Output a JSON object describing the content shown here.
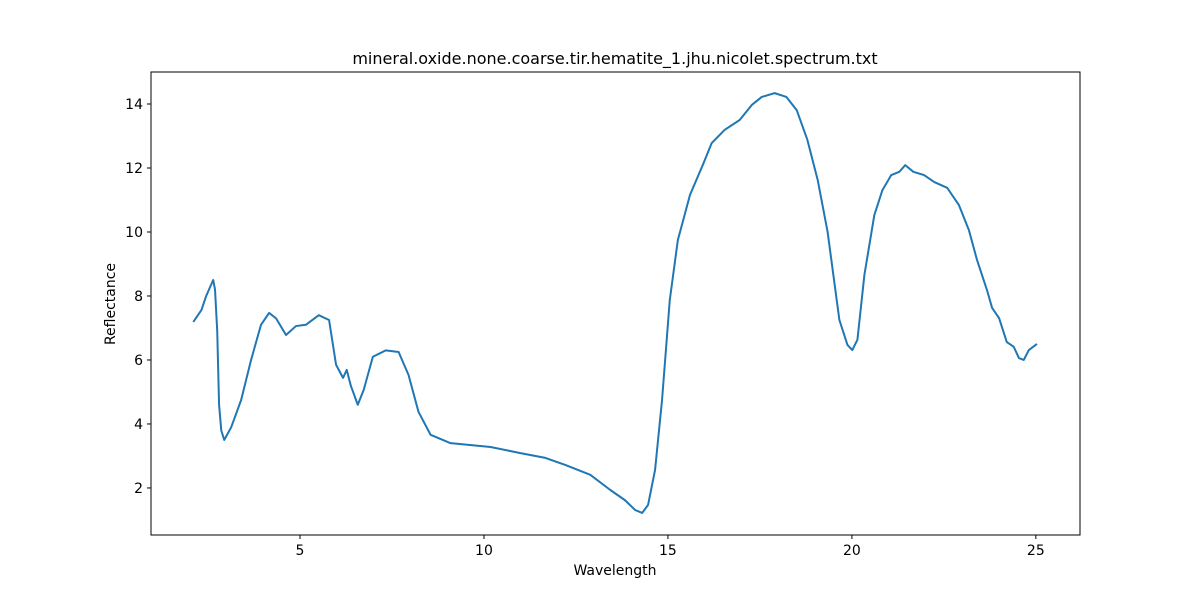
{
  "chart_data": {
    "type": "line",
    "title": "mineral.oxide.none.coarse.tir.hematite_1.jhu.nicolet.spectrum.txt",
    "x_label": "Wavelength",
    "y_label": "Reflectance",
    "xlim": [
      0.95,
      26.2
    ],
    "ylim": [
      0.53,
      15.0
    ],
    "xticks": [
      5,
      10,
      15,
      20,
      25
    ],
    "yticks": [
      2,
      4,
      6,
      8,
      10,
      12,
      14
    ],
    "color": "#1f77b4",
    "x": [
      2.1,
      2.32,
      2.45,
      2.64,
      2.69,
      2.75,
      2.8,
      2.86,
      2.94,
      3.13,
      3.4,
      3.67,
      3.94,
      4.16,
      4.35,
      4.62,
      4.89,
      5.16,
      5.51,
      5.79,
      5.98,
      6.17,
      6.27,
      6.38,
      6.57,
      6.73,
      6.98,
      7.33,
      7.68,
      7.95,
      8.22,
      8.55,
      9.09,
      9.9,
      10.18,
      10.99,
      11.67,
      12.21,
      12.89,
      13.43,
      13.83,
      14.11,
      14.3,
      14.46,
      14.65,
      14.84,
      15.05,
      15.27,
      15.6,
      15.95,
      16.19,
      16.54,
      16.95,
      17.28,
      17.55,
      17.9,
      18.22,
      18.5,
      18.79,
      19.07,
      19.34,
      19.66,
      19.88,
      20.01,
      20.15,
      20.34,
      20.61,
      20.83,
      21.07,
      21.29,
      21.45,
      21.67,
      21.96,
      22.24,
      22.59,
      22.91,
      23.18,
      23.4,
      23.67,
      23.81,
      24.0,
      24.21,
      24.4,
      24.54,
      24.67,
      24.81,
      25.03
    ],
    "values": [
      7.19,
      7.56,
      8.0,
      8.5,
      8.2,
      6.9,
      4.6,
      3.8,
      3.5,
      3.9,
      4.75,
      6.0,
      7.1,
      7.47,
      7.3,
      6.78,
      7.06,
      7.1,
      7.4,
      7.25,
      5.85,
      5.44,
      5.69,
      5.2,
      4.6,
      5.06,
      6.1,
      6.3,
      6.25,
      5.53,
      4.38,
      3.66,
      3.4,
      3.31,
      3.28,
      3.09,
      2.94,
      2.72,
      2.41,
      1.94,
      1.62,
      1.31,
      1.22,
      1.47,
      2.56,
      4.75,
      7.87,
      9.75,
      11.16,
      12.1,
      12.78,
      13.19,
      13.5,
      13.97,
      14.22,
      14.34,
      14.22,
      13.81,
      12.88,
      11.63,
      10.0,
      7.25,
      6.47,
      6.31,
      6.63,
      8.66,
      10.53,
      11.31,
      11.78,
      11.88,
      12.09,
      11.88,
      11.78,
      11.56,
      11.38,
      10.84,
      10.06,
      9.13,
      8.19,
      7.63,
      7.31,
      6.56,
      6.41,
      6.06,
      6.0,
      6.31,
      6.5
    ]
  }
}
